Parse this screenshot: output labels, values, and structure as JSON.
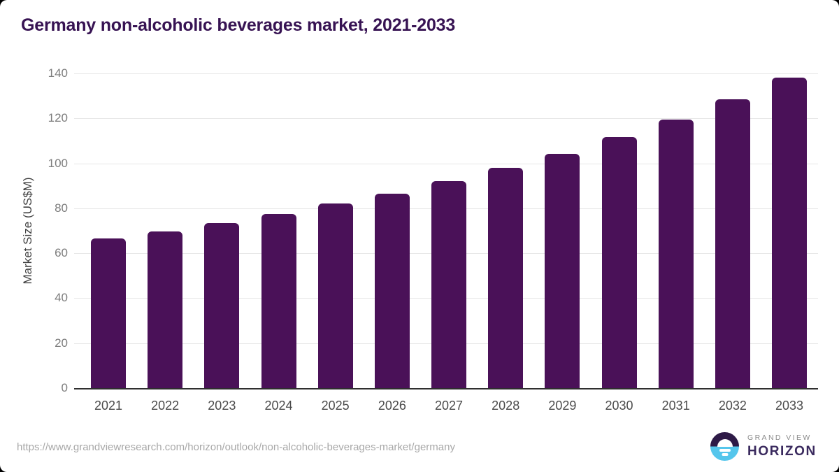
{
  "header": {
    "title": "Germany non-alcoholic beverages market, 2021-2033"
  },
  "chart_data": {
    "type": "bar",
    "categories": [
      "2021",
      "2022",
      "2023",
      "2024",
      "2025",
      "2026",
      "2027",
      "2028",
      "2029",
      "2030",
      "2031",
      "2032",
      "2033"
    ],
    "values": [
      66.6,
      69.8,
      73.5,
      77.6,
      82.0,
      86.5,
      92.1,
      98.0,
      104.2,
      111.7,
      119.4,
      128.4,
      138.0
    ],
    "title": "Germany non-alcoholic beverages market, 2021-2033",
    "xlabel": "",
    "ylabel": "Market Size (US$M)",
    "ylim": [
      0,
      140
    ],
    "yticks": [
      0,
      20,
      40,
      60,
      80,
      100,
      120,
      140
    ],
    "grid": "horizontal",
    "legend": "none",
    "bar_color": "#4a1158"
  },
  "footer": {
    "source_url": "https://www.grandviewresearch.com/horizon/outlook/non-alcoholic-beverages-market/germany",
    "logo": {
      "line1": "GRAND VIEW",
      "line2": "HORIZON"
    }
  },
  "colors": {
    "bar": "#4a1158",
    "title_text": "#371353",
    "axis_line": "#2f2f2f",
    "gridline": "#e7e7e7",
    "tick_text": "#7d7d7d",
    "x_label_text": "#4b4b4b",
    "url_text": "#a8a8a8",
    "logo_purple": "#2e1a47",
    "logo_blue": "#55c6ec",
    "logo_name_text": "#3a2a5e"
  }
}
